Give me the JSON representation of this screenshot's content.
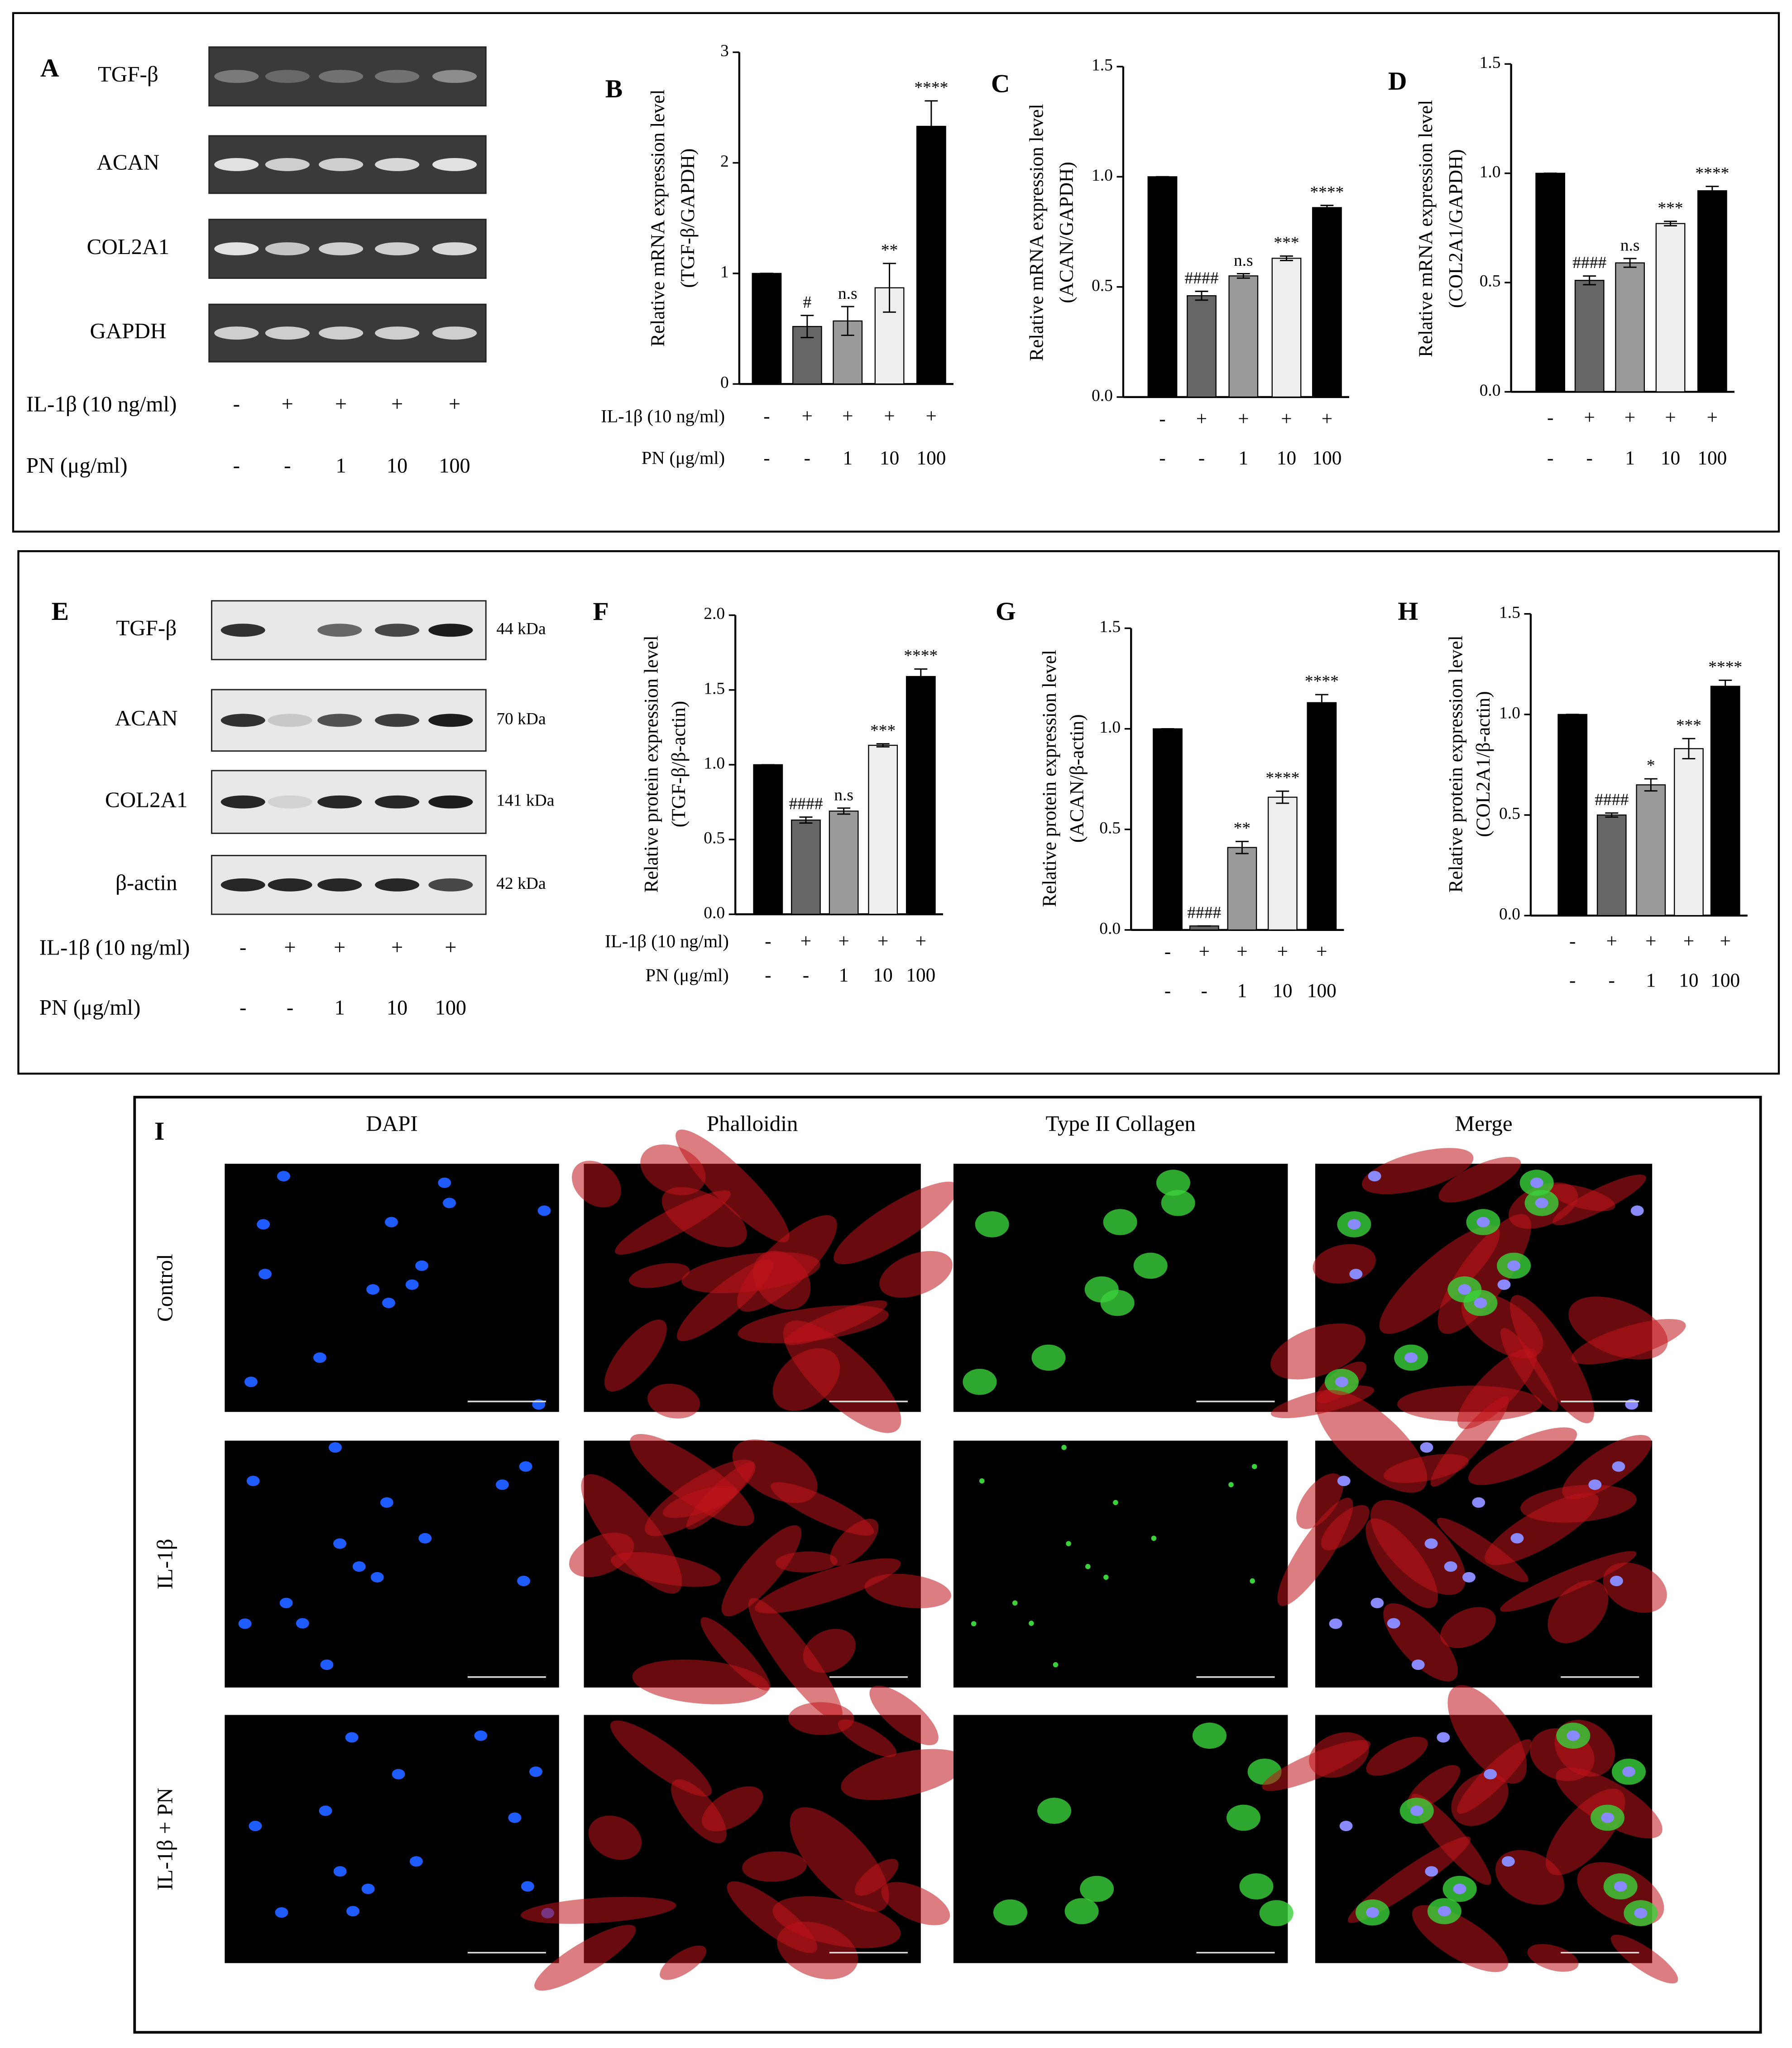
{
  "chart_data": [
    {
      "type": "bar",
      "letter": "B",
      "ylabel": [
        "Relative mRNA expression level",
        "(TGF-β/GAPDH)"
      ],
      "values": [
        1,
        0.52,
        0.57,
        0.87,
        2.33
      ],
      "errors": [
        0,
        0.1,
        0.13,
        0.22,
        0.23
      ],
      "annotations": [
        null,
        "#",
        "n.s",
        "**",
        "****"
      ],
      "colors": [
        "#000000",
        "#666666",
        "#9a9a9a",
        "#eeeeee",
        "#000000"
      ],
      "ylim": [
        0,
        3
      ],
      "yticks": [
        0,
        1,
        2,
        3
      ],
      "treatment_labels": [
        "IL-1β (10 ng/ml)",
        "PN (μg/ml)"
      ],
      "treatments": [
        [
          "-",
          "+",
          "+",
          "+",
          "+"
        ],
        [
          "-",
          "-",
          "1",
          "10",
          "100"
        ]
      ]
    },
    {
      "type": "bar",
      "letter": "C",
      "ylabel": [
        "Relative mRNA expression level",
        "(ACAN/GAPDH)"
      ],
      "values": [
        1,
        0.46,
        0.55,
        0.63,
        0.86
      ],
      "errors": [
        0,
        0.02,
        0.01,
        0.01,
        0.01
      ],
      "annotations": [
        null,
        "####",
        "n.s",
        "***",
        "****"
      ],
      "colors": [
        "#000000",
        "#666666",
        "#9a9a9a",
        "#eeeeee",
        "#000000"
      ],
      "ylim": [
        0,
        1.5
      ],
      "yticks": [
        {
          "value": 0,
          "label": "0.0"
        },
        {
          "value": 0.5,
          "label": "0.5"
        },
        {
          "value": 1,
          "label": "1.0"
        },
        {
          "value": 1.5,
          "label": "1.5"
        }
      ],
      "treatments": [
        [
          "-",
          "+",
          "+",
          "+",
          "+"
        ],
        [
          "-",
          "-",
          "1",
          "10",
          "100"
        ]
      ]
    },
    {
      "type": "bar",
      "letter": "D",
      "ylabel": [
        "Relative mRNA expression level",
        "(COL2A1/GAPDH)"
      ],
      "values": [
        1,
        0.51,
        0.59,
        0.77,
        0.92
      ],
      "errors": [
        0,
        0.02,
        0.02,
        0.01,
        0.02
      ],
      "annotations": [
        null,
        "####",
        "n.s",
        "***",
        "****"
      ],
      "colors": [
        "#000000",
        "#666666",
        "#9a9a9a",
        "#eeeeee",
        "#000000"
      ],
      "ylim": [
        0,
        1.5
      ],
      "yticks": [
        {
          "value": 0,
          "label": "0.0"
        },
        {
          "value": 0.5,
          "label": "0.5"
        },
        {
          "value": 1,
          "label": "1.0"
        },
        {
          "value": 1.5,
          "label": "1.5"
        }
      ],
      "treatments": [
        [
          "-",
          "+",
          "+",
          "+",
          "+"
        ],
        [
          "-",
          "-",
          "1",
          "10",
          "100"
        ]
      ]
    },
    {
      "type": "bar",
      "letter": "F",
      "ylabel": [
        "Relative protein expression level",
        "(TGF-β/β-actin)"
      ],
      "values": [
        1,
        0.63,
        0.69,
        1.13,
        1.59
      ],
      "errors": [
        0,
        0.02,
        0.02,
        0.01,
        0.05
      ],
      "annotations": [
        null,
        "####",
        "n.s",
        "***",
        "****"
      ],
      "colors": [
        "#000000",
        "#666666",
        "#9a9a9a",
        "#eeeeee",
        "#000000"
      ],
      "ylim": [
        0,
        2
      ],
      "yticks": [
        {
          "value": 0,
          "label": "0.0"
        },
        {
          "value": 0.5,
          "label": "0.5"
        },
        {
          "value": 1,
          "label": "1.0"
        },
        {
          "value": 1.5,
          "label": "1.5"
        },
        {
          "value": 2,
          "label": "2.0"
        }
      ],
      "treatment_labels": [
        "IL-1β (10 ng/ml)",
        "PN (μg/ml)"
      ],
      "treatments": [
        [
          "-",
          "+",
          "+",
          "+",
          "+"
        ],
        [
          "-",
          "-",
          "1",
          "10",
          "100"
        ]
      ]
    },
    {
      "type": "bar",
      "letter": "G",
      "ylabel": [
        "Relative protein expression level",
        "(ACAN/β-actin)"
      ],
      "values": [
        1,
        0.02,
        0.41,
        0.66,
        1.13
      ],
      "errors": [
        0,
        0,
        0.03,
        0.03,
        0.04
      ],
      "annotations": [
        null,
        "####",
        "**",
        "****",
        "****"
      ],
      "colors": [
        "#000000",
        "#666666",
        "#9a9a9a",
        "#eeeeee",
        "#000000"
      ],
      "ylim": [
        0,
        1.5
      ],
      "yticks": [
        {
          "value": 0,
          "label": "0.0"
        },
        {
          "value": 0.5,
          "label": "0.5"
        },
        {
          "value": 1,
          "label": "1.0"
        },
        {
          "value": 1.5,
          "label": "1.5"
        }
      ],
      "treatments": [
        [
          "-",
          "+",
          "+",
          "+",
          "+"
        ],
        [
          "-",
          "-",
          "1",
          "10",
          "100"
        ]
      ]
    },
    {
      "type": "bar",
      "letter": "H",
      "ylabel": [
        "Relative protein expression level",
        "(COL2A1/β-actin)"
      ],
      "values": [
        1,
        0.5,
        0.65,
        0.83,
        1.14
      ],
      "errors": [
        0,
        0.01,
        0.03,
        0.05,
        0.03
      ],
      "annotations": [
        null,
        "####",
        "*",
        "***",
        "****"
      ],
      "colors": [
        "#000000",
        "#666666",
        "#9a9a9a",
        "#eeeeee",
        "#000000"
      ],
      "ylim": [
        0,
        1.5
      ],
      "yticks": [
        {
          "value": 0,
          "label": "0.0"
        },
        {
          "value": 0.5,
          "label": "0.5"
        },
        {
          "value": 1,
          "label": "1.0"
        },
        {
          "value": 1.5,
          "label": "1.5"
        }
      ],
      "treatments": [
        [
          "-",
          "+",
          "+",
          "+",
          "+"
        ],
        [
          "-",
          "-",
          "1",
          "10",
          "100"
        ]
      ]
    }
  ],
  "panel_a": {
    "letter": "A",
    "rows": [
      "TGF-β",
      "ACAN",
      "COL2A1",
      "GAPDH"
    ],
    "treatment_labels": [
      "IL-1β (10 ng/ml)",
      "PN (μg/ml)"
    ],
    "treatments": [
      [
        "-",
        "+",
        "+",
        "+",
        "+"
      ],
      [
        "-",
        "-",
        "1",
        "10",
        "100"
      ]
    ]
  },
  "panel_e": {
    "letter": "E",
    "rows": [
      "TGF-β",
      "ACAN",
      "COL2A1",
      "β-actin"
    ],
    "sizes": [
      "44 kDa",
      "70 kDa",
      "141 kDa",
      "42 kDa"
    ],
    "treatment_labels": [
      "IL-1β (10 ng/ml)",
      "PN (μg/ml)"
    ],
    "treatments": [
      [
        "-",
        "+",
        "+",
        "+",
        "+"
      ],
      [
        "-",
        "-",
        "1",
        "10",
        "100"
      ]
    ]
  },
  "panel_i": {
    "letter": "I",
    "columns": [
      "DAPI",
      "Phalloidin",
      "Type II Collagen",
      "Merge"
    ],
    "rows": [
      "Control",
      "IL-1β",
      "IL-1β + PN"
    ]
  }
}
